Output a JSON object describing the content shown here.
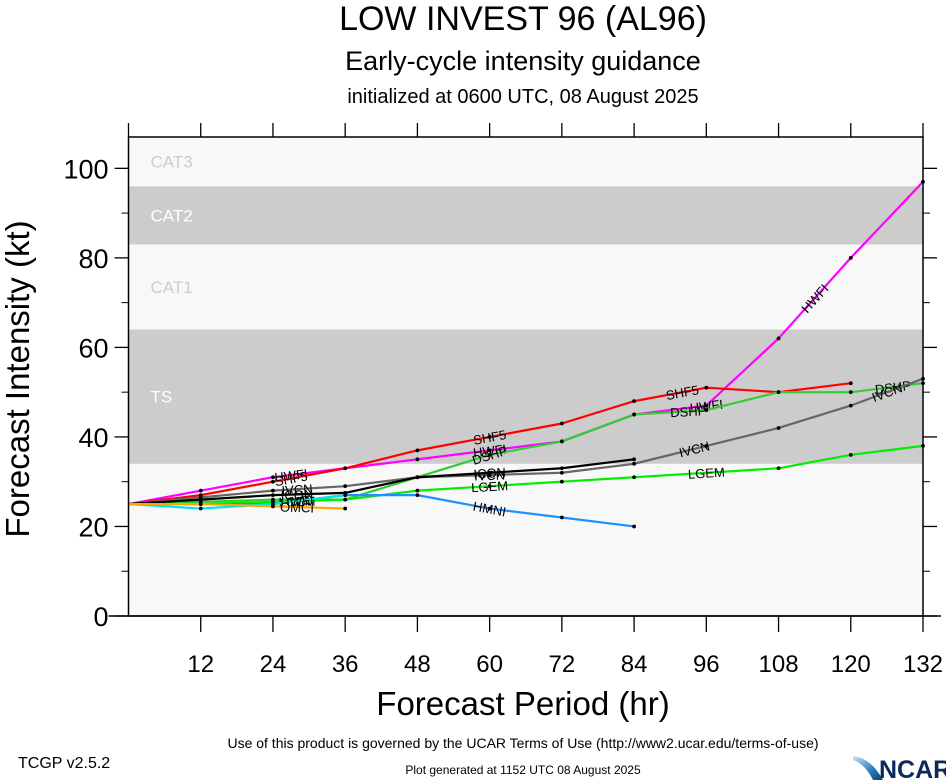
{
  "chart_data": {
    "type": "line",
    "title": "LOW INVEST 96 (AL96)",
    "subtitle": "Early-cycle intensity guidance",
    "init_text": "initialized at 0600 UTC, 08 August 2025",
    "xlabel": "Forecast Period (hr)",
    "ylabel": "Forecast Intensity (kt)",
    "xlim": [
      0,
      132
    ],
    "ylim": [
      0,
      107
    ],
    "xticks": [
      12,
      24,
      36,
      48,
      60,
      72,
      84,
      96,
      108,
      120,
      132
    ],
    "xminor": [],
    "yticks": [
      0,
      20,
      40,
      60,
      80,
      100
    ],
    "yminor": [
      10,
      30,
      50,
      70,
      90
    ],
    "bands": [
      {
        "label": "TS",
        "from": 34,
        "to": 64,
        "fill": "#cccccc",
        "text_color": "#ffffff"
      },
      {
        "label": "CAT1",
        "from": 64,
        "to": 83,
        "fill": "#f8f8f8",
        "text_color": "#cccccc"
      },
      {
        "label": "CAT2",
        "from": 83,
        "to": 96,
        "fill": "#cccccc",
        "text_color": "#ffffff"
      },
      {
        "label": "CAT3",
        "from": 96,
        "to": 107,
        "fill": "#f8f8f8",
        "text_color": "#cccccc"
      }
    ],
    "background": "#f8f8f8",
    "series": [
      {
        "name": "HWFI",
        "color": "#ff00ff",
        "x": [
          0,
          12,
          24,
          36,
          48,
          60,
          72,
          84,
          96,
          108,
          120,
          132
        ],
        "y": [
          25,
          28,
          31,
          33,
          35,
          37,
          39,
          45,
          47,
          62,
          80,
          97
        ],
        "label_at": [
          27,
          60,
          96,
          114
        ]
      },
      {
        "name": "SHF5",
        "color": "#ff0000",
        "x": [
          0,
          12,
          24,
          36,
          48,
          60,
          72,
          84,
          96,
          108,
          120
        ],
        "y": [
          25,
          27,
          30,
          33,
          37,
          40,
          43,
          48,
          51,
          50,
          52
        ],
        "label_at": [
          27,
          60,
          92
        ]
      },
      {
        "name": "DSHP",
        "color": "#33cc33",
        "x": [
          0,
          12,
          24,
          36,
          48,
          60,
          72,
          84,
          96,
          108,
          120,
          132
        ],
        "y": [
          25,
          25.5,
          26,
          26,
          31,
          36,
          39,
          45,
          46,
          50,
          50,
          52
        ],
        "label_at": [
          60,
          93,
          127
        ]
      },
      {
        "name": "IVCN",
        "color": "#666666",
        "x": [
          0,
          12,
          24,
          36,
          48,
          60,
          72,
          84,
          96,
          108,
          120,
          132
        ],
        "y": [
          25,
          26.5,
          28,
          29,
          31,
          31.5,
          32,
          34,
          38,
          42,
          47,
          53
        ],
        "label_at": [
          28,
          60,
          94,
          126
        ]
      },
      {
        "name": "ICON",
        "color": "#000000",
        "x": [
          0,
          12,
          24,
          36,
          48,
          60,
          72,
          84
        ],
        "y": [
          25,
          26,
          27,
          27.5,
          31,
          32,
          33,
          35
        ],
        "label_at": [
          28,
          60
        ]
      },
      {
        "name": "LGEM",
        "color": "#00ee00",
        "x": [
          0,
          12,
          24,
          36,
          48,
          60,
          72,
          84,
          108,
          120,
          132
        ],
        "y": [
          25,
          25,
          25.5,
          26,
          28,
          29,
          30,
          31,
          33,
          36,
          38
        ],
        "label_at": [
          28,
          60,
          96
        ]
      },
      {
        "name": "HMNI",
        "color": "#1e90ff",
        "x": [
          0,
          12,
          24,
          36,
          48,
          60,
          72,
          84
        ],
        "y": [
          25,
          25,
          25,
          27,
          27,
          24,
          22,
          20
        ],
        "label_at": [
          28,
          60
        ]
      },
      {
        "name": "HWFI-cyan",
        "display_name": "HWFI",
        "color": "#00e5ee",
        "x": [
          0,
          12,
          24,
          36
        ],
        "y": [
          25,
          24,
          25,
          27
        ],
        "label_at": [
          28
        ]
      },
      {
        "name": "OMCI",
        "color": "#ffa500",
        "x": [
          0,
          12,
          24,
          36
        ],
        "y": [
          25,
          25,
          24.5,
          24
        ],
        "label_at": [
          28
        ]
      }
    ]
  },
  "footer": {
    "terms": "Use of this product is governed by the UCAR Terms of Use (http://www2.ucar.edu/terms-of-use)",
    "version": "TCGP v2.5.2",
    "generated": "Plot generated at 1152 UTC   08 August 2025",
    "logo_text": "NCAR"
  }
}
